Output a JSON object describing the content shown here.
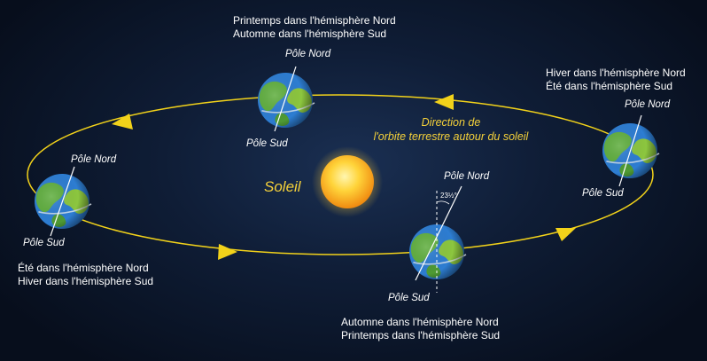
{
  "sun": {
    "label": "Soleil"
  },
  "orbit": {
    "label_line1": "Direction de",
    "label_line2": "l'orbite terrestre autour du soleil"
  },
  "tilt": {
    "label": "23½°"
  },
  "positions": {
    "top": {
      "season_line1": "Printemps dans l'hémisphère Nord",
      "season_line2": "Automne dans l'hémisphère Sud",
      "north": "Pôle Nord",
      "south": "Pôle Sud"
    },
    "right": {
      "season_line1": "Hiver dans l'hémisphère Nord",
      "season_line2": "Été dans l'hémisphère Sud",
      "north": "Pôle Nord",
      "south": "Pôle Sud"
    },
    "left": {
      "season_line1": "Été dans l'hémisphère Nord",
      "season_line2": "Hiver dans l'hémisphère Sud",
      "north": "Pôle Nord",
      "south": "Pôle Sud"
    },
    "bottom": {
      "season_line1": "Automne dans l'hémisphère Nord",
      "season_line2": "Printemps dans l'hémisphère Sud",
      "north": "Pôle Nord",
      "south": "Pôle Sud"
    }
  },
  "colors": {
    "orbit": "#f2d21a",
    "sun": "#f7b318",
    "ocean": "#2d7dd2",
    "land": "#5fae3e",
    "background": "#0f1d36"
  }
}
